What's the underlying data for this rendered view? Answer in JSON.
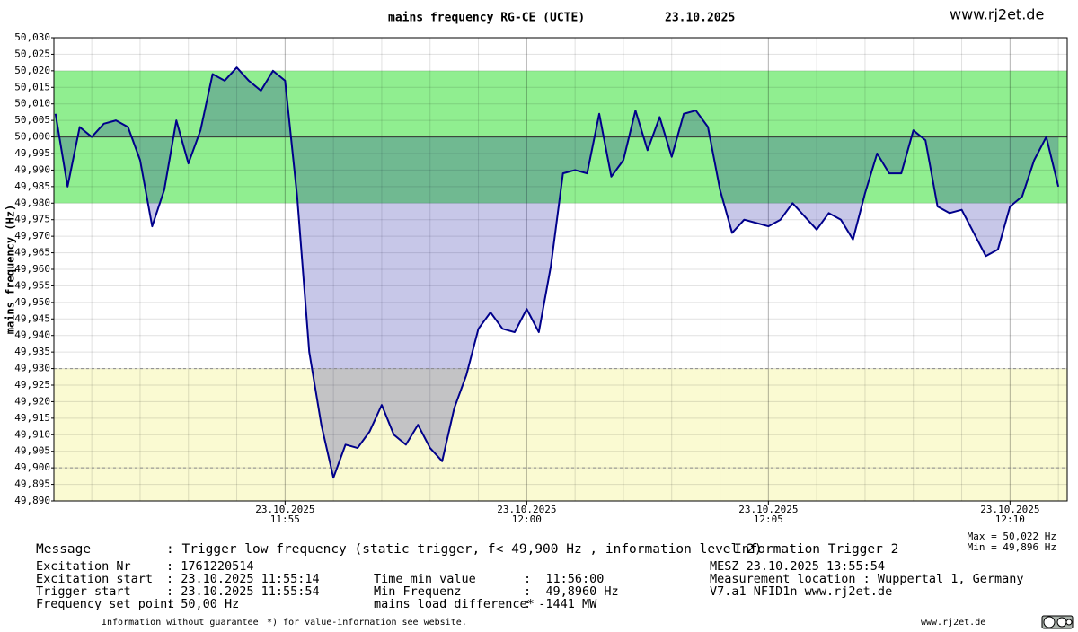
{
  "chart_data": {
    "type": "line",
    "title": "mains frequency RG-CE (UCTE)",
    "date": "23.10.2025",
    "site": "www.rj2et.de",
    "y_label": "mains frequency (Hz)",
    "max_label": "Max = 50,022 Hz",
    "min_label": "Min = 49,896 Hz",
    "xlim": [
      "11:50:13",
      "12:11:11"
    ],
    "xticks": [
      "11:55",
      "12:00",
      "12:05",
      "12:10"
    ],
    "xtick_date": "23.10.2025",
    "xminorticks": [
      "11:51",
      "11:52",
      "11:53",
      "11:54",
      "11:56",
      "11:57",
      "11:58",
      "11:59",
      "12:01",
      "12:02",
      "12:03",
      "12:04",
      "12:06",
      "12:07",
      "12:08",
      "12:09",
      "12:11"
    ],
    "ylim": [
      49.89,
      50.03
    ],
    "yticks": [
      {
        "value": 49.89,
        "label": "49,890"
      },
      {
        "value": 49.895,
        "label": "49,895"
      },
      {
        "value": 49.9,
        "label": "49,900"
      },
      {
        "value": 49.905,
        "label": "49,905"
      },
      {
        "value": 49.91,
        "label": "49,910"
      },
      {
        "value": 49.915,
        "label": "49,915"
      },
      {
        "value": 49.92,
        "label": "49,920"
      },
      {
        "value": 49.925,
        "label": "49,925"
      },
      {
        "value": 49.93,
        "label": "49,930"
      },
      {
        "value": 49.935,
        "label": "49,935"
      },
      {
        "value": 49.94,
        "label": "49,940"
      },
      {
        "value": 49.945,
        "label": "49,945"
      },
      {
        "value": 49.95,
        "label": "49,950"
      },
      {
        "value": 49.955,
        "label": "49,955"
      },
      {
        "value": 49.96,
        "label": "49,960"
      },
      {
        "value": 49.965,
        "label": "49,965"
      },
      {
        "value": 49.97,
        "label": "49,970"
      },
      {
        "value": 49.975,
        "label": "49,975"
      },
      {
        "value": 49.98,
        "label": "49,980"
      },
      {
        "value": 49.985,
        "label": "49,985"
      },
      {
        "value": 49.99,
        "label": "49,990"
      },
      {
        "value": 49.995,
        "label": "49,995"
      },
      {
        "value": 50.0,
        "label": "50,000"
      },
      {
        "value": 50.005,
        "label": "50,005"
      },
      {
        "value": 50.01,
        "label": "50,010"
      },
      {
        "value": 50.015,
        "label": "50,015"
      },
      {
        "value": 50.02,
        "label": "50,020"
      },
      {
        "value": 50.025,
        "label": "50,025"
      },
      {
        "value": 50.03,
        "label": "50,030"
      }
    ],
    "grid": true,
    "bands": [
      {
        "from": 49.98,
        "to": 50.02,
        "color": "#90ee90"
      },
      {
        "from": 49.89,
        "to": 49.93,
        "color": "#fafad2"
      }
    ],
    "hlines": [
      {
        "value": 50.0,
        "style": "solid"
      },
      {
        "value": 49.93,
        "style": "dashed"
      },
      {
        "value": 49.9,
        "style": "dashed"
      }
    ],
    "area_base": 50.0,
    "area_color": "rgba(0,0,150,0.22)",
    "color": "#00008b",
    "x": [
      "11:50:15",
      "11:50:30",
      "11:50:45",
      "11:51:00",
      "11:51:15",
      "11:51:30",
      "11:51:45",
      "11:52:00",
      "11:52:15",
      "11:52:30",
      "11:52:45",
      "11:53:00",
      "11:53:15",
      "11:53:30",
      "11:53:45",
      "11:54:00",
      "11:54:15",
      "11:54:30",
      "11:54:45",
      "11:55:00",
      "11:55:15",
      "11:55:30",
      "11:55:45",
      "11:56:00",
      "11:56:15",
      "11:56:30",
      "11:56:45",
      "11:57:00",
      "11:57:15",
      "11:57:30",
      "11:57:45",
      "11:58:00",
      "11:58:15",
      "11:58:30",
      "11:58:45",
      "11:59:00",
      "11:59:15",
      "11:59:30",
      "11:59:45",
      "12:00:00",
      "12:00:15",
      "12:00:30",
      "12:00:45",
      "12:01:00",
      "12:01:15",
      "12:01:30",
      "12:01:45",
      "12:02:00",
      "12:02:15",
      "12:02:30",
      "12:02:45",
      "12:03:00",
      "12:03:15",
      "12:03:30",
      "12:03:45",
      "12:04:00",
      "12:04:15",
      "12:04:30",
      "12:04:45",
      "12:05:00",
      "12:05:15",
      "12:05:30",
      "12:05:45",
      "12:06:00",
      "12:06:15",
      "12:06:30",
      "12:06:45",
      "12:07:00",
      "12:07:15",
      "12:07:30",
      "12:07:45",
      "12:08:00",
      "12:08:15",
      "12:08:30",
      "12:08:45",
      "12:09:00",
      "12:09:15",
      "12:09:30",
      "12:09:45",
      "12:10:00",
      "12:10:15",
      "12:10:30",
      "12:10:45",
      "12:11:00"
    ],
    "values": [
      50.007,
      49.985,
      50.003,
      50.0,
      50.004,
      50.005,
      50.003,
      49.993,
      49.973,
      49.984,
      50.005,
      49.992,
      50.002,
      50.019,
      50.017,
      50.021,
      50.017,
      50.014,
      50.02,
      50.017,
      49.982,
      49.935,
      49.913,
      49.897,
      49.907,
      49.906,
      49.911,
      49.919,
      49.91,
      49.907,
      49.913,
      49.906,
      49.902,
      49.918,
      49.928,
      49.942,
      49.947,
      49.942,
      49.941,
      49.948,
      49.941,
      49.961,
      49.989,
      49.99,
      49.989,
      50.007,
      49.988,
      49.993,
      50.008,
      49.996,
      50.006,
      49.994,
      50.007,
      50.008,
      50.003,
      49.984,
      49.971,
      49.975,
      49.974,
      49.973,
      49.975,
      49.98,
      49.976,
      49.972,
      49.977,
      49.975,
      49.969,
      49.983,
      49.995,
      49.989,
      49.989,
      50.002,
      49.999,
      49.979,
      49.977,
      49.978,
      49.971,
      49.964,
      49.966,
      49.979,
      49.982,
      49.993,
      50.0,
      49.985
    ]
  },
  "info": {
    "message": {
      "label": "Message",
      "value": ": Trigger low frequency (static trigger, f< 49,900 Hz , information level 2)"
    },
    "trigger_info": "Information Trigger 2",
    "left": [
      {
        "label": "Excitation Nr",
        "value": ": 1761220514"
      },
      {
        "label": "Excitation start",
        "value": ": 23.10.2025 11:55:14"
      },
      {
        "label": "Trigger start",
        "value": ": 23.10.2025 11:55:54"
      },
      {
        "label": "Frequency set point",
        "value": ": 50,00 Hz"
      }
    ],
    "middle": [
      {
        "label": "Time min value",
        "value": ":  11:56:00"
      },
      {
        "label": "Min Frequenz",
        "value": ":  49,8960 Hz"
      },
      {
        "label": "mains load difference*",
        "value": ": -1441 MW"
      }
    ],
    "right": [
      "MESZ 23.10.2025 13:55:54",
      "Measurement location : Wuppertal 1, Germany",
      "V7.a1 NFID1n www.rj2et.de"
    ]
  },
  "footer": [
    "Information without guarantee",
    "*) for value-information see website.",
    "www.rj2et.de"
  ]
}
